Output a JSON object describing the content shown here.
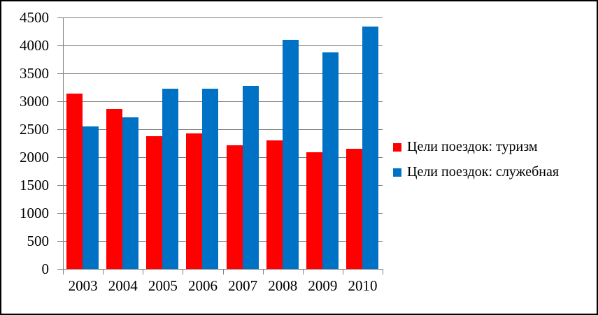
{
  "chart_data": {
    "type": "bar",
    "categories": [
      "2003",
      "2004",
      "2005",
      "2006",
      "2007",
      "2008",
      "2009",
      "2010"
    ],
    "series": [
      {
        "key": "tourism",
        "name": "Цели поездок: туризм",
        "color": "#FF0000",
        "values": [
          3140,
          2860,
          2380,
          2430,
          2210,
          2300,
          2090,
          2150
        ]
      },
      {
        "key": "business",
        "name": "Цели поездок: служебная",
        "color": "#0072C6",
        "values": [
          2550,
          2710,
          3220,
          3230,
          3270,
          4100,
          3870,
          4340
        ]
      }
    ],
    "title": "",
    "xlabel": "",
    "ylabel": "",
    "ylim": [
      0,
      4500
    ],
    "ytick_step": 500,
    "yticks": [
      "4500",
      "4000",
      "3500",
      "3000",
      "2500",
      "2000",
      "1500",
      "1000",
      "500",
      "0"
    ],
    "grid": true,
    "legend_position": "right",
    "gridline_color": "#808080",
    "axis_color": "#808080",
    "text_color": "#000000",
    "background_color": "#FFFFFF",
    "frame_border_color": "#000000"
  }
}
